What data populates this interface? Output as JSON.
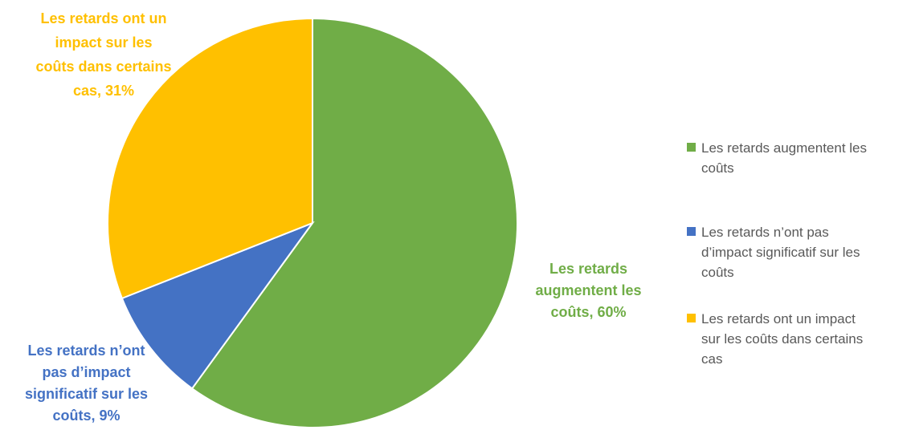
{
  "chart_data": {
    "type": "pie",
    "title": "",
    "start_angle_deg": 0,
    "direction": "clockwise",
    "slices": [
      {
        "label": "Les retards augmentent les coûts",
        "value": 60,
        "color": "#70AD47"
      },
      {
        "label": "Les retards n’ont pas d’impact significatif sur les coûts",
        "value": 9,
        "color": "#4472C4"
      },
      {
        "label": "Les retards ont un impact sur les coûts dans certains cas",
        "value": 31,
        "color": "#FFC000"
      }
    ],
    "data_labels": [
      {
        "lines": [
          "Les retards",
          "augmentent les",
          "coûts, 60%"
        ]
      },
      {
        "lines": [
          "Les retards n’ont",
          "pas d’impact",
          "significatif sur les",
          "coûts, 9%"
        ]
      },
      {
        "lines": [
          "Les retards ont un",
          "impact sur les",
          "coûts dans certains",
          "cas, 31%"
        ]
      }
    ],
    "legend": {
      "position": "right",
      "items": [
        {
          "lines": [
            "Les retards augmentent les",
            "coûts"
          ],
          "color": "#70AD47"
        },
        {
          "lines": [
            "Les retards n’ont pas",
            "d’impact significatif sur les",
            "coûts"
          ],
          "color": "#4472C4"
        },
        {
          "lines": [
            "Les retards ont un impact",
            "sur les coûts dans certains",
            "cas"
          ],
          "color": "#FFC000"
        }
      ]
    }
  }
}
